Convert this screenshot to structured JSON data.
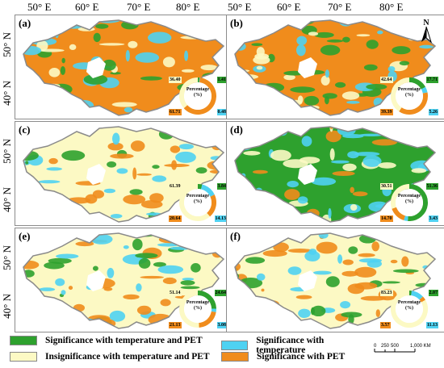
{
  "axes": {
    "top_labels": [
      "50° E",
      "60° E",
      "70° E",
      "80° E",
      "50° E",
      "60° E",
      "70° E",
      "80° E"
    ],
    "left_labels": [
      "50° N",
      "40° N",
      "50° N",
      "40° N",
      "50° N",
      "40° N"
    ]
  },
  "colors": {
    "temp_and_pet": "#2ea12e",
    "temp_only": "#4fd2f2",
    "insignificant": "#fcf9c4",
    "pet_only": "#f08c1c",
    "boundary": "#8a8a8a",
    "lake": "#ffffff"
  },
  "north_label": "N",
  "panels": [
    {
      "label": "(a)",
      "dominant": "pet_only",
      "tl": "36.40",
      "tr": "1.41",
      "bl": "61.71",
      "br": "0.48",
      "center": "Percentage\n(%)"
    },
    {
      "label": "(b)",
      "dominant": "pet_only",
      "tl": "42.64",
      "tr": "17.71",
      "bl": "39.39",
      "br": "5.26",
      "center": "Percentage\n(%)"
    },
    {
      "label": "(c)",
      "dominant": "insignificant",
      "tl": "61.39",
      "tr": "3.84",
      "bl": "20.64",
      "br": "14.13",
      "center": "Percentage\n(%)"
    },
    {
      "label": "(d)",
      "dominant": "temp_and_pet",
      "tl": "30.51",
      "tr": "51.36",
      "bl": "14.70",
      "br": "3.43",
      "center": "Percentage\n(%)"
    },
    {
      "label": "(e)",
      "dominant": "insignificant",
      "tl": "51.14",
      "tr": "24.64",
      "bl": "21.13",
      "br": "3.08",
      "center": "Percentage\n(%)"
    },
    {
      "label": "(f)",
      "dominant": "insignificant",
      "tl": "83.23",
      "tr": "2.07",
      "bl": "3.57",
      "br": "11.13",
      "center": "Percentage\n(%)"
    }
  ],
  "legend": [
    {
      "key": "temp_and_pet",
      "label": "Significance with temperature and PET"
    },
    {
      "key": "temp_only",
      "label": "Significance with temperature"
    },
    {
      "key": "insignificant",
      "label": "Insignificance with temperature and PET"
    },
    {
      "key": "pet_only",
      "label": "Significance with PET"
    }
  ],
  "scale": {
    "ticks": [
      "0",
      "250",
      "500",
      "1,000 KM"
    ]
  }
}
